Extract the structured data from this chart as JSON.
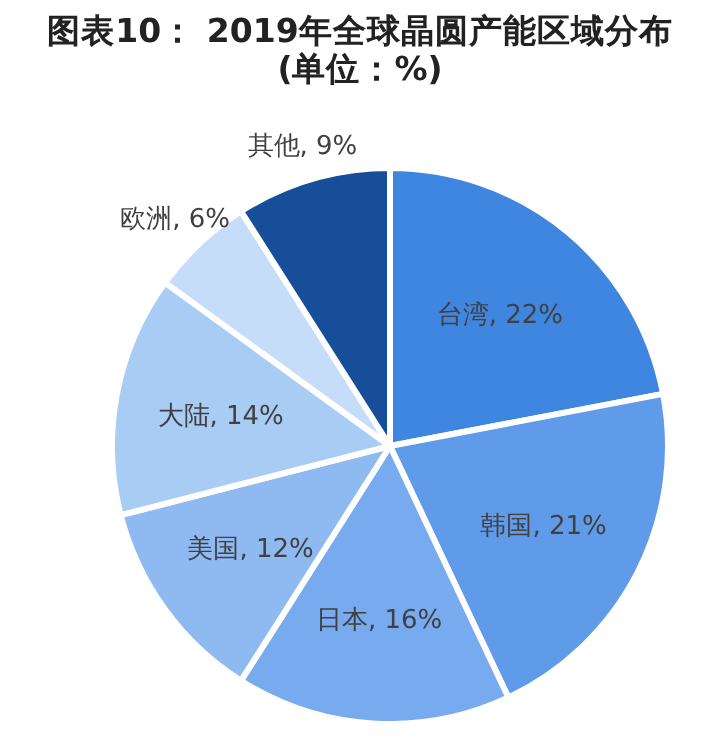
{
  "chart_data": {
    "type": "pie",
    "title": "图表10： 2019年全球晶圆产能区域分布(单位：%)",
    "categories": [
      "台湾",
      "韩国",
      "日本",
      "美国",
      "大陆",
      "欧洲",
      "其他"
    ],
    "values": [
      22,
      21,
      16,
      12,
      14,
      6,
      9
    ],
    "value_labels": [
      "22%",
      "21%",
      "16%",
      "12%",
      "14%",
      "6%",
      "9%"
    ],
    "colors": [
      "#3f86e0",
      "#5f9be9",
      "#77aaee",
      "#8fbaf1",
      "#a9ccf5",
      "#c5ddf8",
      "#174e9a"
    ],
    "legend": false
  }
}
